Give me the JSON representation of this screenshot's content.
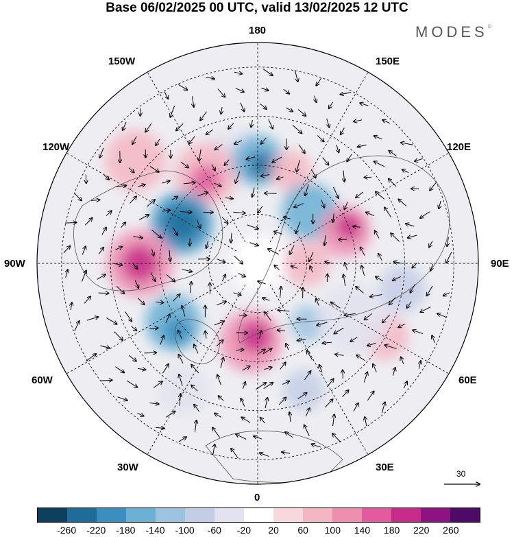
{
  "title": "Base 06/02/2025 00 UTC, valid 13/02/2025 12 UTC",
  "logo": "MODES",
  "logo_mark": "©",
  "longitude_labels": {
    "deg180": "180",
    "w150": "150W",
    "e150": "150E",
    "w120": "120W",
    "e120": "120E",
    "w90": "90W",
    "e90": "90E",
    "w60": "60W",
    "e60": "60E",
    "w30": "30W",
    "e30": "30E",
    "deg0": "0"
  },
  "wind_scale_label": "30",
  "colorbar": {
    "colors": [
      "#0d3f5f",
      "#1e6c9a",
      "#3b8fc0",
      "#6aafd4",
      "#9cc3e0",
      "#c3cee6",
      "#e3e3f0",
      "#ffffff",
      "#f8d8dc",
      "#f4b6c3",
      "#ee8fb0",
      "#e35a9e",
      "#c62a8a",
      "#8e1282",
      "#4d0a66"
    ],
    "ticks": [
      "-260",
      "-220",
      "-180",
      "-140",
      "-100",
      "-60",
      "-20",
      "20",
      "60",
      "100",
      "140",
      "180",
      "220",
      "260"
    ]
  },
  "anomaly_blobs": [
    {
      "lon": -167,
      "lat": 45,
      "r": 55,
      "level": 6
    },
    {
      "lon": -150,
      "lat": 48,
      "r": 62,
      "level": 9
    },
    {
      "lon": -148,
      "lat": 50,
      "r": 30,
      "level": 11
    },
    {
      "lon": 180,
      "lat": 48,
      "r": 50,
      "level": 3
    },
    {
      "lon": 178,
      "lat": 50,
      "r": 26,
      "level": 1
    },
    {
      "lon": 160,
      "lat": 50,
      "r": 40,
      "level": 9
    },
    {
      "lon": 135,
      "lat": 60,
      "r": 55,
      "level": 3
    },
    {
      "lon": 110,
      "lat": 52,
      "r": 50,
      "level": 10
    },
    {
      "lon": 112,
      "lat": 50,
      "r": 25,
      "level": 12
    },
    {
      "lon": -118,
      "lat": 55,
      "r": 60,
      "level": 2
    },
    {
      "lon": -118,
      "lat": 55,
      "r": 35,
      "level": 1
    },
    {
      "lon": -90,
      "lat": 42,
      "r": 65,
      "level": 10
    },
    {
      "lon": -90,
      "lat": 42,
      "r": 35,
      "level": 12
    },
    {
      "lon": -55,
      "lat": 48,
      "r": 55,
      "level": 3
    },
    {
      "lon": -50,
      "lat": 47,
      "r": 28,
      "level": 2
    },
    {
      "lon": -5,
      "lat": 58,
      "r": 60,
      "level": 10
    },
    {
      "lon": -2,
      "lat": 60,
      "r": 30,
      "level": 12
    },
    {
      "lon": 40,
      "lat": 58,
      "r": 35,
      "level": 4
    },
    {
      "lon": 80,
      "lat": 30,
      "r": 45,
      "level": 5
    },
    {
      "lon": 60,
      "lat": 30,
      "r": 45,
      "level": 9
    },
    {
      "lon": 20,
      "lat": 35,
      "r": 40,
      "level": 5
    },
    {
      "lon": -130,
      "lat": 25,
      "r": 60,
      "level": 9
    },
    {
      "lon": 60,
      "lat": 45,
      "r": 70,
      "level": 6
    },
    {
      "lon": 90,
      "lat": 70,
      "r": 45,
      "level": 9
    },
    {
      "lon": -30,
      "lat": 30,
      "r": 50,
      "level": 6
    }
  ]
}
